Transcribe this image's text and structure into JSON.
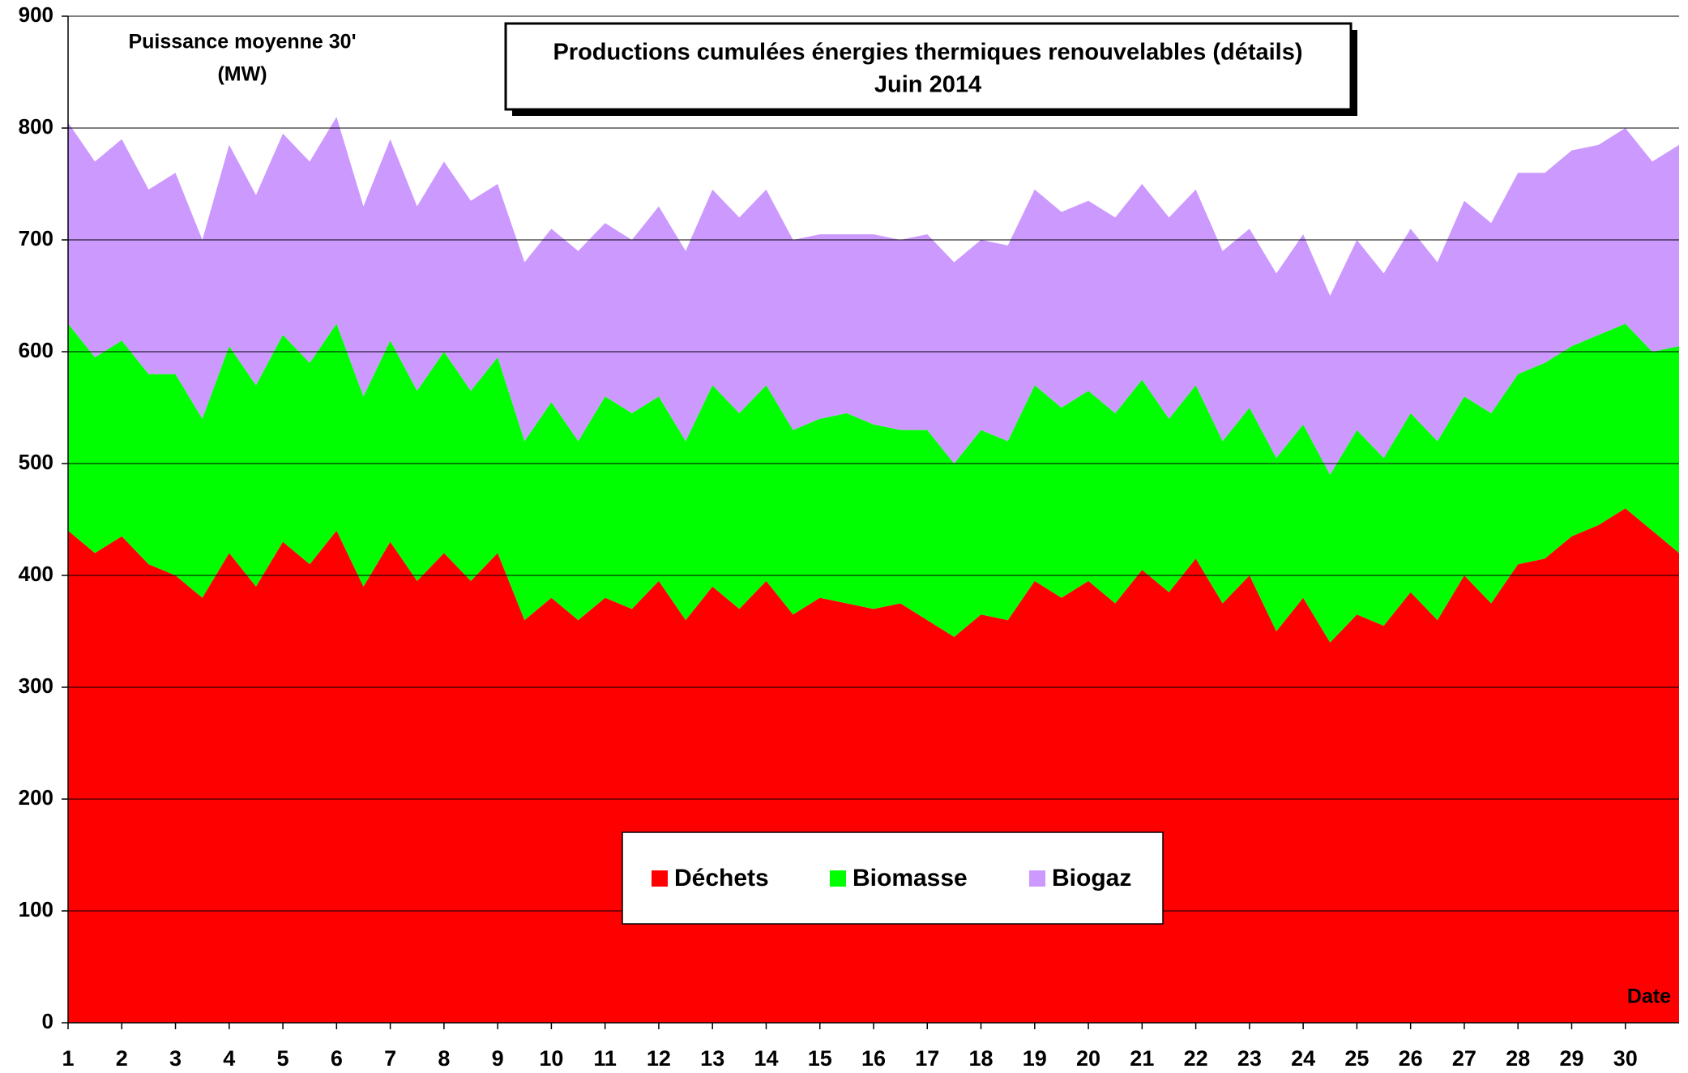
{
  "chart_data": {
    "type": "stacked_area",
    "title": "Productions cumulées énergies thermiques renouvelables (détails)",
    "subtitle": "Juin 2014",
    "ylabel": [
      "Puissance moyenne 30'",
      "(MW)"
    ],
    "xlabel": "Date",
    "x": [
      1,
      1.5,
      2,
      2.5,
      3,
      3.5,
      4,
      4.5,
      5,
      5.5,
      6,
      6.5,
      7,
      7.5,
      8,
      8.5,
      9,
      9.5,
      10,
      10.5,
      11,
      11.5,
      12,
      12.5,
      13,
      13.5,
      14,
      14.5,
      15,
      15.5,
      16,
      16.5,
      17,
      17.5,
      18,
      18.5,
      19,
      19.5,
      20,
      20.5,
      21,
      21.5,
      22,
      22.5,
      23,
      23.5,
      24,
      24.5,
      25,
      25.5,
      26,
      26.5,
      27,
      27.5,
      28,
      28.5,
      29,
      29.5,
      30,
      30.5,
      31
    ],
    "series": [
      {
        "name": "Déchets",
        "color": "#ff0000",
        "values": [
          440,
          420,
          435,
          410,
          400,
          380,
          420,
          390,
          430,
          410,
          440,
          390,
          430,
          395,
          420,
          395,
          420,
          360,
          380,
          360,
          380,
          370,
          395,
          360,
          390,
          370,
          395,
          365,
          380,
          375,
          370,
          375,
          360,
          345,
          365,
          360,
          395,
          380,
          395,
          375,
          405,
          385,
          415,
          375,
          400,
          350,
          380,
          340,
          365,
          355,
          385,
          360,
          400,
          375,
          410,
          415,
          435,
          445,
          460,
          440,
          420
        ]
      },
      {
        "name": "Biomasse",
        "color": "#00ff00",
        "values": [
          185,
          175,
          175,
          170,
          180,
          160,
          185,
          180,
          185,
          180,
          185,
          170,
          180,
          170,
          180,
          170,
          175,
          160,
          175,
          160,
          180,
          175,
          165,
          160,
          180,
          175,
          175,
          165,
          160,
          170,
          165,
          155,
          170,
          155,
          165,
          160,
          175,
          170,
          170,
          170,
          170,
          155,
          155,
          145,
          150,
          155,
          155,
          150,
          165,
          150,
          160,
          160,
          160,
          170,
          170,
          175,
          170,
          170,
          165,
          160,
          185
        ]
      },
      {
        "name": "Biogaz",
        "color": "#cc99ff",
        "values": [
          180,
          175,
          180,
          165,
          180,
          160,
          180,
          170,
          180,
          180,
          185,
          170,
          180,
          165,
          170,
          170,
          155,
          160,
          155,
          170,
          155,
          155,
          170,
          170,
          175,
          175,
          175,
          170,
          165,
          160,
          170,
          170,
          175,
          180,
          170,
          175,
          175,
          175,
          170,
          175,
          175,
          180,
          175,
          170,
          160,
          165,
          170,
          160,
          170,
          165,
          165,
          160,
          175,
          170,
          180,
          170,
          175,
          170,
          175,
          170,
          180
        ]
      }
    ],
    "xlim": [
      1,
      31
    ],
    "xticks": [
      1,
      2,
      3,
      4,
      5,
      6,
      7,
      8,
      9,
      10,
      11,
      12,
      13,
      14,
      15,
      16,
      17,
      18,
      19,
      20,
      21,
      22,
      23,
      24,
      25,
      26,
      27,
      28,
      29,
      30
    ],
    "ylim": [
      0,
      900
    ],
    "yticks": [
      0,
      100,
      200,
      300,
      400,
      500,
      600,
      700,
      800,
      900
    ],
    "grid": true
  }
}
